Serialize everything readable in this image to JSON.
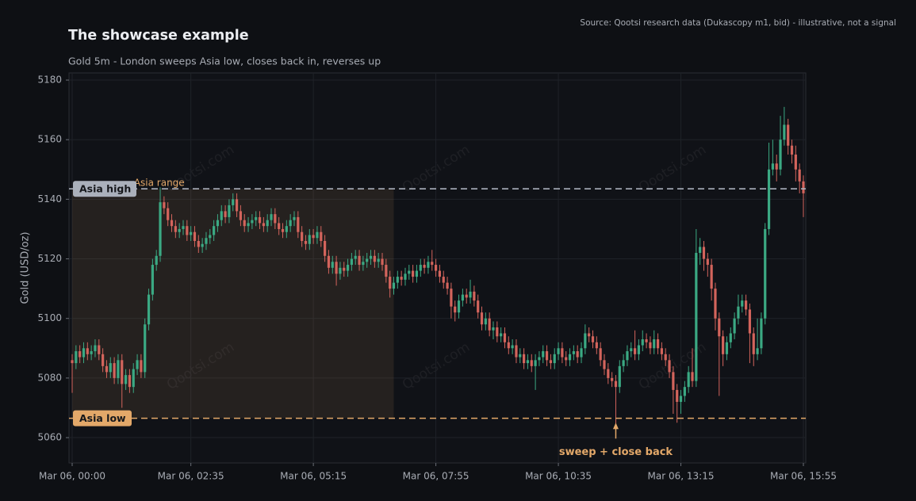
{
  "chart_data": {
    "type": "candlestick",
    "title": "The showcase example",
    "subtitle": "Gold 5m - London sweeps Asia low, closes back in, reverses up",
    "source": "Source: Qootsi research data (Dukascopy m1, bid) - illustrative, not a signal",
    "ylabel": "Gold (USD/oz)",
    "watermark": "Qootsi.com",
    "up_color": "#3ba983",
    "down_color": "#d3645c",
    "grid": true,
    "ylim": [
      5051.5,
      5182.4
    ],
    "yticks": [
      5060,
      5080,
      5100,
      5120,
      5140,
      5160,
      5180
    ],
    "categories": [
      "Mar 06, 00:00",
      null,
      null,
      null,
      null,
      null,
      null,
      null,
      null,
      null,
      null,
      null,
      null,
      null,
      null,
      null,
      null,
      null,
      null,
      null,
      null,
      null,
      null,
      null,
      null,
      null,
      null,
      null,
      null,
      null,
      null,
      "Mar 06, 02:35",
      null,
      null,
      null,
      null,
      null,
      null,
      null,
      null,
      null,
      null,
      null,
      null,
      null,
      null,
      null,
      null,
      null,
      null,
      null,
      null,
      null,
      null,
      null,
      null,
      null,
      null,
      null,
      null,
      null,
      null,
      null,
      "Mar 06, 05:15",
      null,
      null,
      null,
      null,
      null,
      null,
      null,
      null,
      null,
      null,
      null,
      null,
      null,
      null,
      null,
      null,
      null,
      null,
      null,
      null,
      null,
      null,
      null,
      null,
      null,
      null,
      null,
      null,
      null,
      null,
      null,
      "Mar 06, 07:55",
      null,
      null,
      null,
      null,
      null,
      null,
      null,
      null,
      null,
      null,
      null,
      null,
      null,
      null,
      null,
      null,
      null,
      null,
      null,
      null,
      null,
      null,
      null,
      null,
      null,
      null,
      null,
      null,
      null,
      null,
      null,
      "Mar 06, 10:35",
      null,
      null,
      null,
      null,
      null,
      null,
      null,
      null,
      null,
      null,
      null,
      null,
      null,
      null,
      null,
      null,
      null,
      null,
      null,
      null,
      null,
      null,
      null,
      null,
      null,
      null,
      null,
      null,
      null,
      null,
      null,
      "Mar 06, 13:15",
      null,
      null,
      null,
      null,
      null,
      null,
      null,
      null,
      null,
      null,
      null,
      null,
      null,
      null,
      null,
      null,
      null,
      null,
      null,
      null,
      null,
      null,
      null,
      null,
      null,
      null,
      null,
      null,
      null,
      null,
      null,
      "Mar 06, 15:55"
    ],
    "open": [
      5086,
      5085,
      5089,
      5087,
      5090,
      5088,
      5089,
      5091,
      5088,
      5084,
      5082,
      5085,
      5080,
      5086,
      5078,
      5081,
      5077,
      5083,
      5086,
      5082,
      5098,
      5108,
      5118,
      5121,
      5139,
      5137,
      5133,
      5131,
      5129,
      5130,
      5131,
      5128,
      5129,
      5126,
      5124,
      5125,
      5127,
      5128,
      5131,
      5133,
      5136,
      5134,
      5138,
      5140,
      5136,
      5133,
      5131,
      5132,
      5133,
      5134,
      5132,
      5131,
      5133,
      5135,
      5132,
      5130,
      5129,
      5131,
      5133,
      5134,
      5129,
      5126,
      5125,
      5128,
      5127,
      5129,
      5126,
      5121,
      5117,
      5119,
      5115,
      5117,
      5116,
      5118,
      5120,
      5121,
      5118,
      5119,
      5120,
      5121,
      5119,
      5120,
      5118,
      5114,
      5110,
      5112,
      5114,
      5113,
      5115,
      5116,
      5114,
      5116,
      5118,
      5117,
      5119,
      5118,
      5116,
      5114,
      5112,
      5110,
      5104,
      5102,
      5106,
      5108,
      5107,
      5109,
      5106,
      5102,
      5098,
      5100,
      5096,
      5097,
      5094,
      5095,
      5092,
      5090,
      5091,
      5087,
      5088,
      5085,
      5086,
      5084,
      5086,
      5087,
      5089,
      5086,
      5085,
      5088,
      5090,
      5087,
      5086,
      5088,
      5089,
      5087,
      5090,
      5095,
      5094,
      5092,
      5090,
      5086,
      5083,
      5080,
      5079,
      5077,
      5084,
      5086,
      5089,
      5090,
      5088,
      5091,
      5093,
      5092,
      5090,
      5093,
      5090,
      5088,
      5086,
      5082,
      5076,
      5072,
      5074,
      5077,
      5082,
      5079,
      5122,
      5124,
      5120,
      5118,
      5110,
      5100,
      5094,
      5088,
      5092,
      5095,
      5100,
      5104,
      5106,
      5103,
      5095,
      5088,
      5090,
      5100,
      5130,
      5150,
      5152,
      5150,
      5160,
      5165,
      5158,
      5155,
      5150,
      5146
    ],
    "high": [
      5088,
      5091,
      5091,
      5092,
      5092,
      5091,
      5093,
      5093,
      5090,
      5086,
      5087,
      5087,
      5088,
      5088,
      5083,
      5083,
      5085,
      5088,
      5088,
      5100,
      5110,
      5120,
      5123,
      5144,
      5141,
      5139,
      5135,
      5133,
      5132,
      5133,
      5133,
      5131,
      5131,
      5128,
      5127,
      5129,
      5130,
      5133,
      5135,
      5138,
      5138,
      5140,
      5142,
      5142,
      5138,
      5135,
      5134,
      5135,
      5136,
      5136,
      5134,
      5135,
      5137,
      5137,
      5134,
      5132,
      5133,
      5135,
      5136,
      5136,
      5131,
      5128,
      5130,
      5130,
      5131,
      5131,
      5128,
      5123,
      5121,
      5121,
      5119,
      5119,
      5120,
      5122,
      5123,
      5123,
      5121,
      5122,
      5123,
      5123,
      5122,
      5122,
      5120,
      5116,
      5114,
      5116,
      5116,
      5117,
      5118,
      5118,
      5118,
      5120,
      5120,
      5121,
      5123,
      5120,
      5118,
      5116,
      5114,
      5112,
      5106,
      5108,
      5110,
      5110,
      5113,
      5111,
      5108,
      5104,
      5102,
      5102,
      5099,
      5099,
      5097,
      5097,
      5094,
      5093,
      5093,
      5090,
      5090,
      5088,
      5088,
      5088,
      5089,
      5091,
      5091,
      5088,
      5090,
      5092,
      5092,
      5089,
      5090,
      5091,
      5091,
      5092,
      5098,
      5097,
      5096,
      5094,
      5092,
      5088,
      5085,
      5082,
      5081,
      5086,
      5088,
      5091,
      5092,
      5096,
      5093,
      5096,
      5095,
      5094,
      5096,
      5095,
      5092,
      5090,
      5088,
      5084,
      5078,
      5076,
      5079,
      5084,
      5090,
      5130,
      5127,
      5126,
      5122,
      5120,
      5112,
      5102,
      5096,
      5094,
      5097,
      5102,
      5108,
      5108,
      5108,
      5105,
      5097,
      5100,
      5102,
      5132,
      5159,
      5160,
      5155,
      5168,
      5171,
      5167,
      5160,
      5158,
      5152,
      5148
    ],
    "low": [
      5075,
      5083,
      5085,
      5085,
      5086,
      5086,
      5087,
      5086,
      5082,
      5080,
      5080,
      5078,
      5078,
      5070,
      5076,
      5075,
      5075,
      5081,
      5080,
      5080,
      5096,
      5106,
      5116,
      5119,
      5135,
      5131,
      5129,
      5127,
      5127,
      5128,
      5126,
      5126,
      5124,
      5122,
      5122,
      5123,
      5125,
      5126,
      5129,
      5131,
      5132,
      5132,
      5136,
      5134,
      5131,
      5129,
      5129,
      5130,
      5131,
      5130,
      5129,
      5129,
      5131,
      5130,
      5128,
      5127,
      5127,
      5129,
      5131,
      5127,
      5124,
      5123,
      5123,
      5125,
      5125,
      5124,
      5119,
      5115,
      5115,
      5111,
      5113,
      5114,
      5114,
      5116,
      5118,
      5116,
      5116,
      5117,
      5118,
      5117,
      5117,
      5116,
      5112,
      5107,
      5108,
      5110,
      5111,
      5111,
      5113,
      5112,
      5112,
      5114,
      5115,
      5115,
      5116,
      5114,
      5112,
      5110,
      5108,
      5100,
      5099,
      5100,
      5104,
      5105,
      5105,
      5104,
      5100,
      5096,
      5096,
      5094,
      5093,
      5092,
      5092,
      5090,
      5088,
      5088,
      5085,
      5085,
      5083,
      5083,
      5082,
      5076,
      5084,
      5085,
      5084,
      5083,
      5083,
      5086,
      5085,
      5084,
      5084,
      5086,
      5085,
      5085,
      5088,
      5092,
      5090,
      5088,
      5084,
      5081,
      5078,
      5077,
      5062,
      5075,
      5082,
      5084,
      5087,
      5086,
      5086,
      5089,
      5090,
      5088,
      5088,
      5088,
      5086,
      5084,
      5080,
      5068,
      5065,
      5068,
      5072,
      5075,
      5077,
      5077,
      5118,
      5116,
      5114,
      5106,
      5096,
      5074,
      5084,
      5086,
      5090,
      5093,
      5098,
      5102,
      5101,
      5085,
      5084,
      5086,
      5088,
      5098,
      5128,
      5148,
      5146,
      5148,
      5158,
      5155,
      5152,
      5146,
      5142,
      5134
    ],
    "close": [
      5085,
      5089,
      5087,
      5090,
      5088,
      5089,
      5091,
      5088,
      5084,
      5082,
      5085,
      5080,
      5086,
      5078,
      5081,
      5077,
      5083,
      5086,
      5082,
      5098,
      5108,
      5118,
      5121,
      5139,
      5137,
      5133,
      5131,
      5129,
      5130,
      5131,
      5128,
      5129,
      5126,
      5124,
      5125,
      5127,
      5128,
      5131,
      5133,
      5136,
      5134,
      5138,
      5140,
      5136,
      5133,
      5131,
      5132,
      5133,
      5134,
      5132,
      5131,
      5133,
      5135,
      5132,
      5130,
      5129,
      5131,
      5133,
      5134,
      5129,
      5126,
      5125,
      5128,
      5127,
      5129,
      5126,
      5121,
      5117,
      5119,
      5115,
      5117,
      5116,
      5118,
      5120,
      5121,
      5118,
      5119,
      5120,
      5121,
      5119,
      5120,
      5118,
      5114,
      5110,
      5112,
      5114,
      5113,
      5115,
      5116,
      5114,
      5116,
      5118,
      5117,
      5119,
      5118,
      5116,
      5114,
      5112,
      5110,
      5104,
      5102,
      5106,
      5108,
      5107,
      5109,
      5106,
      5102,
      5098,
      5100,
      5096,
      5097,
      5094,
      5095,
      5092,
      5090,
      5091,
      5087,
      5088,
      5085,
      5086,
      5084,
      5086,
      5087,
      5089,
      5086,
      5085,
      5088,
      5090,
      5087,
      5086,
      5088,
      5089,
      5087,
      5090,
      5095,
      5094,
      5092,
      5090,
      5086,
      5083,
      5080,
      5079,
      5077,
      5084,
      5086,
      5089,
      5090,
      5088,
      5091,
      5093,
      5092,
      5090,
      5093,
      5090,
      5088,
      5086,
      5082,
      5076,
      5072,
      5074,
      5077,
      5082,
      5079,
      5122,
      5124,
      5120,
      5118,
      5110,
      5100,
      5094,
      5088,
      5092,
      5095,
      5100,
      5104,
      5106,
      5103,
      5095,
      5088,
      5090,
      5100,
      5130,
      5150,
      5152,
      5150,
      5160,
      5165,
      5158,
      5155,
      5150,
      5146,
      5142
    ],
    "levels": [
      {
        "label": "Asia high",
        "value": 5143.5,
        "color": "#aab0bb"
      },
      {
        "label": "Asia low",
        "value": 5066.5,
        "color": "#e3a869"
      }
    ],
    "range": {
      "label": "Asia range",
      "from": 0,
      "to": 84,
      "color": "#e3a869"
    },
    "annotation": {
      "text": "sweep + close back",
      "index": 142,
      "value": 5065,
      "color": "#e3a869"
    }
  }
}
